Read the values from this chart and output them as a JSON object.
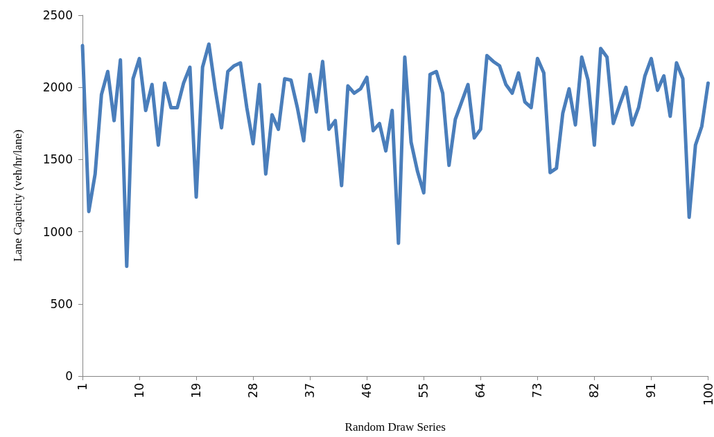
{
  "chart_data": {
    "type": "line",
    "xlabel": "Random Draw Series",
    "ylabel": "Lane Capacity (veh/hr/lane)",
    "categories": [
      "1",
      null,
      null,
      null,
      null,
      null,
      null,
      null,
      null,
      "10",
      null,
      null,
      null,
      null,
      null,
      null,
      null,
      null,
      "19",
      null,
      null,
      null,
      null,
      null,
      null,
      null,
      null,
      "28",
      null,
      null,
      null,
      null,
      null,
      null,
      null,
      null,
      "37",
      null,
      null,
      null,
      null,
      null,
      null,
      null,
      null,
      "46",
      null,
      null,
      null,
      null,
      null,
      null,
      null,
      null,
      "55",
      null,
      null,
      null,
      null,
      null,
      null,
      null,
      null,
      "64",
      null,
      null,
      null,
      null,
      null,
      null,
      null,
      null,
      "73",
      null,
      null,
      null,
      null,
      null,
      null,
      null,
      null,
      "82",
      null,
      null,
      null,
      null,
      null,
      null,
      null,
      null,
      "91",
      null,
      null,
      null,
      null,
      null,
      null,
      null,
      null,
      "100"
    ],
    "series": [
      {
        "color": "#4a7ebb",
        "values": [
          2290,
          1140,
          1400,
          1950,
          2110,
          1770,
          2190,
          760,
          2060,
          2200,
          1840,
          2020,
          1600,
          2030,
          1860,
          1860,
          2030,
          2140,
          1240,
          2140,
          2300,
          1990,
          1720,
          2110,
          2150,
          2170,
          1860,
          1610,
          2020,
          1400,
          1810,
          1710,
          2060,
          2050,
          1860,
          1630,
          2090,
          1830,
          2180,
          1710,
          1770,
          1320,
          2010,
          1960,
          1990,
          2070,
          1700,
          1750,
          1560,
          1840,
          920,
          2210,
          1620,
          1420,
          1270,
          2090,
          2110,
          1960,
          1460,
          1780,
          1900,
          2020,
          1650,
          1710,
          2220,
          2180,
          2150,
          2020,
          1960,
          2100,
          1900,
          1860,
          2200,
          2100,
          1410,
          1440,
          1820,
          1990,
          1740,
          2210,
          2050,
          1600,
          2270,
          2210,
          1750,
          1880,
          2000,
          1740,
          1860,
          2080,
          2200,
          1980,
          2080,
          1800,
          2170,
          2060,
          1100,
          1600,
          1730,
          2030
        ]
      }
    ],
    "ylim": [
      0,
      2500
    ],
    "yticks": [
      0,
      500,
      1000,
      1500,
      2000,
      2500
    ],
    "grid": false,
    "marker": "none",
    "line_style": "solid"
  }
}
